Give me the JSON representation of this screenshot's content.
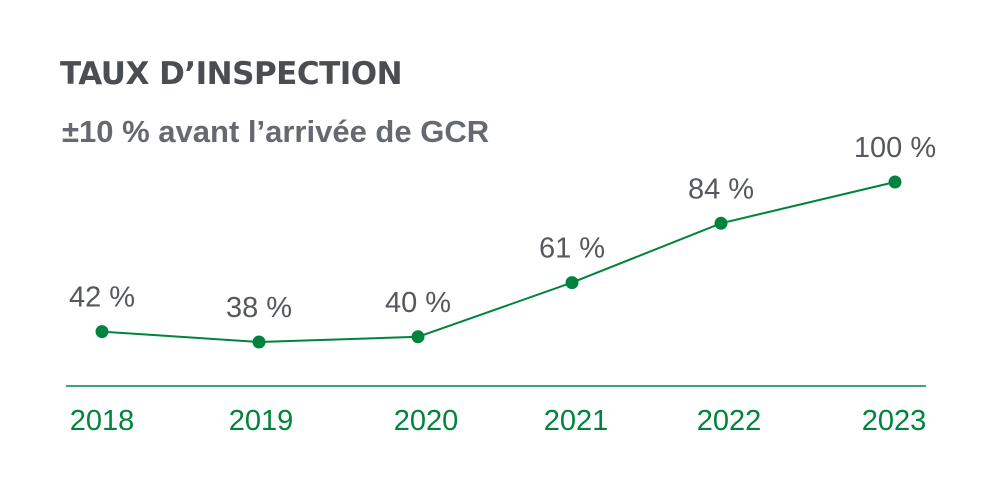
{
  "colors": {
    "accent": "#00843d",
    "title": "#4a4d52",
    "subtitle": "#666a70",
    "value_label": "#55585d"
  },
  "chart_data": {
    "type": "line",
    "title": "TAUX D’INSPECTION",
    "subtitle": "±10 % avant l’arrivée de GCR",
    "xlabel": "",
    "ylabel": "",
    "categories": [
      "2018",
      "2019",
      "2020",
      "2021",
      "2022",
      "2023"
    ],
    "series": [
      {
        "values": [
          42,
          38,
          40,
          61,
          84,
          100
        ],
        "labels": [
          "42 %",
          "38 %",
          "40 %",
          "61 %",
          "84 %",
          "100 %"
        ]
      }
    ],
    "ylim": [
      0,
      100
    ],
    "grid": false,
    "legend": "none",
    "markers": true
  }
}
